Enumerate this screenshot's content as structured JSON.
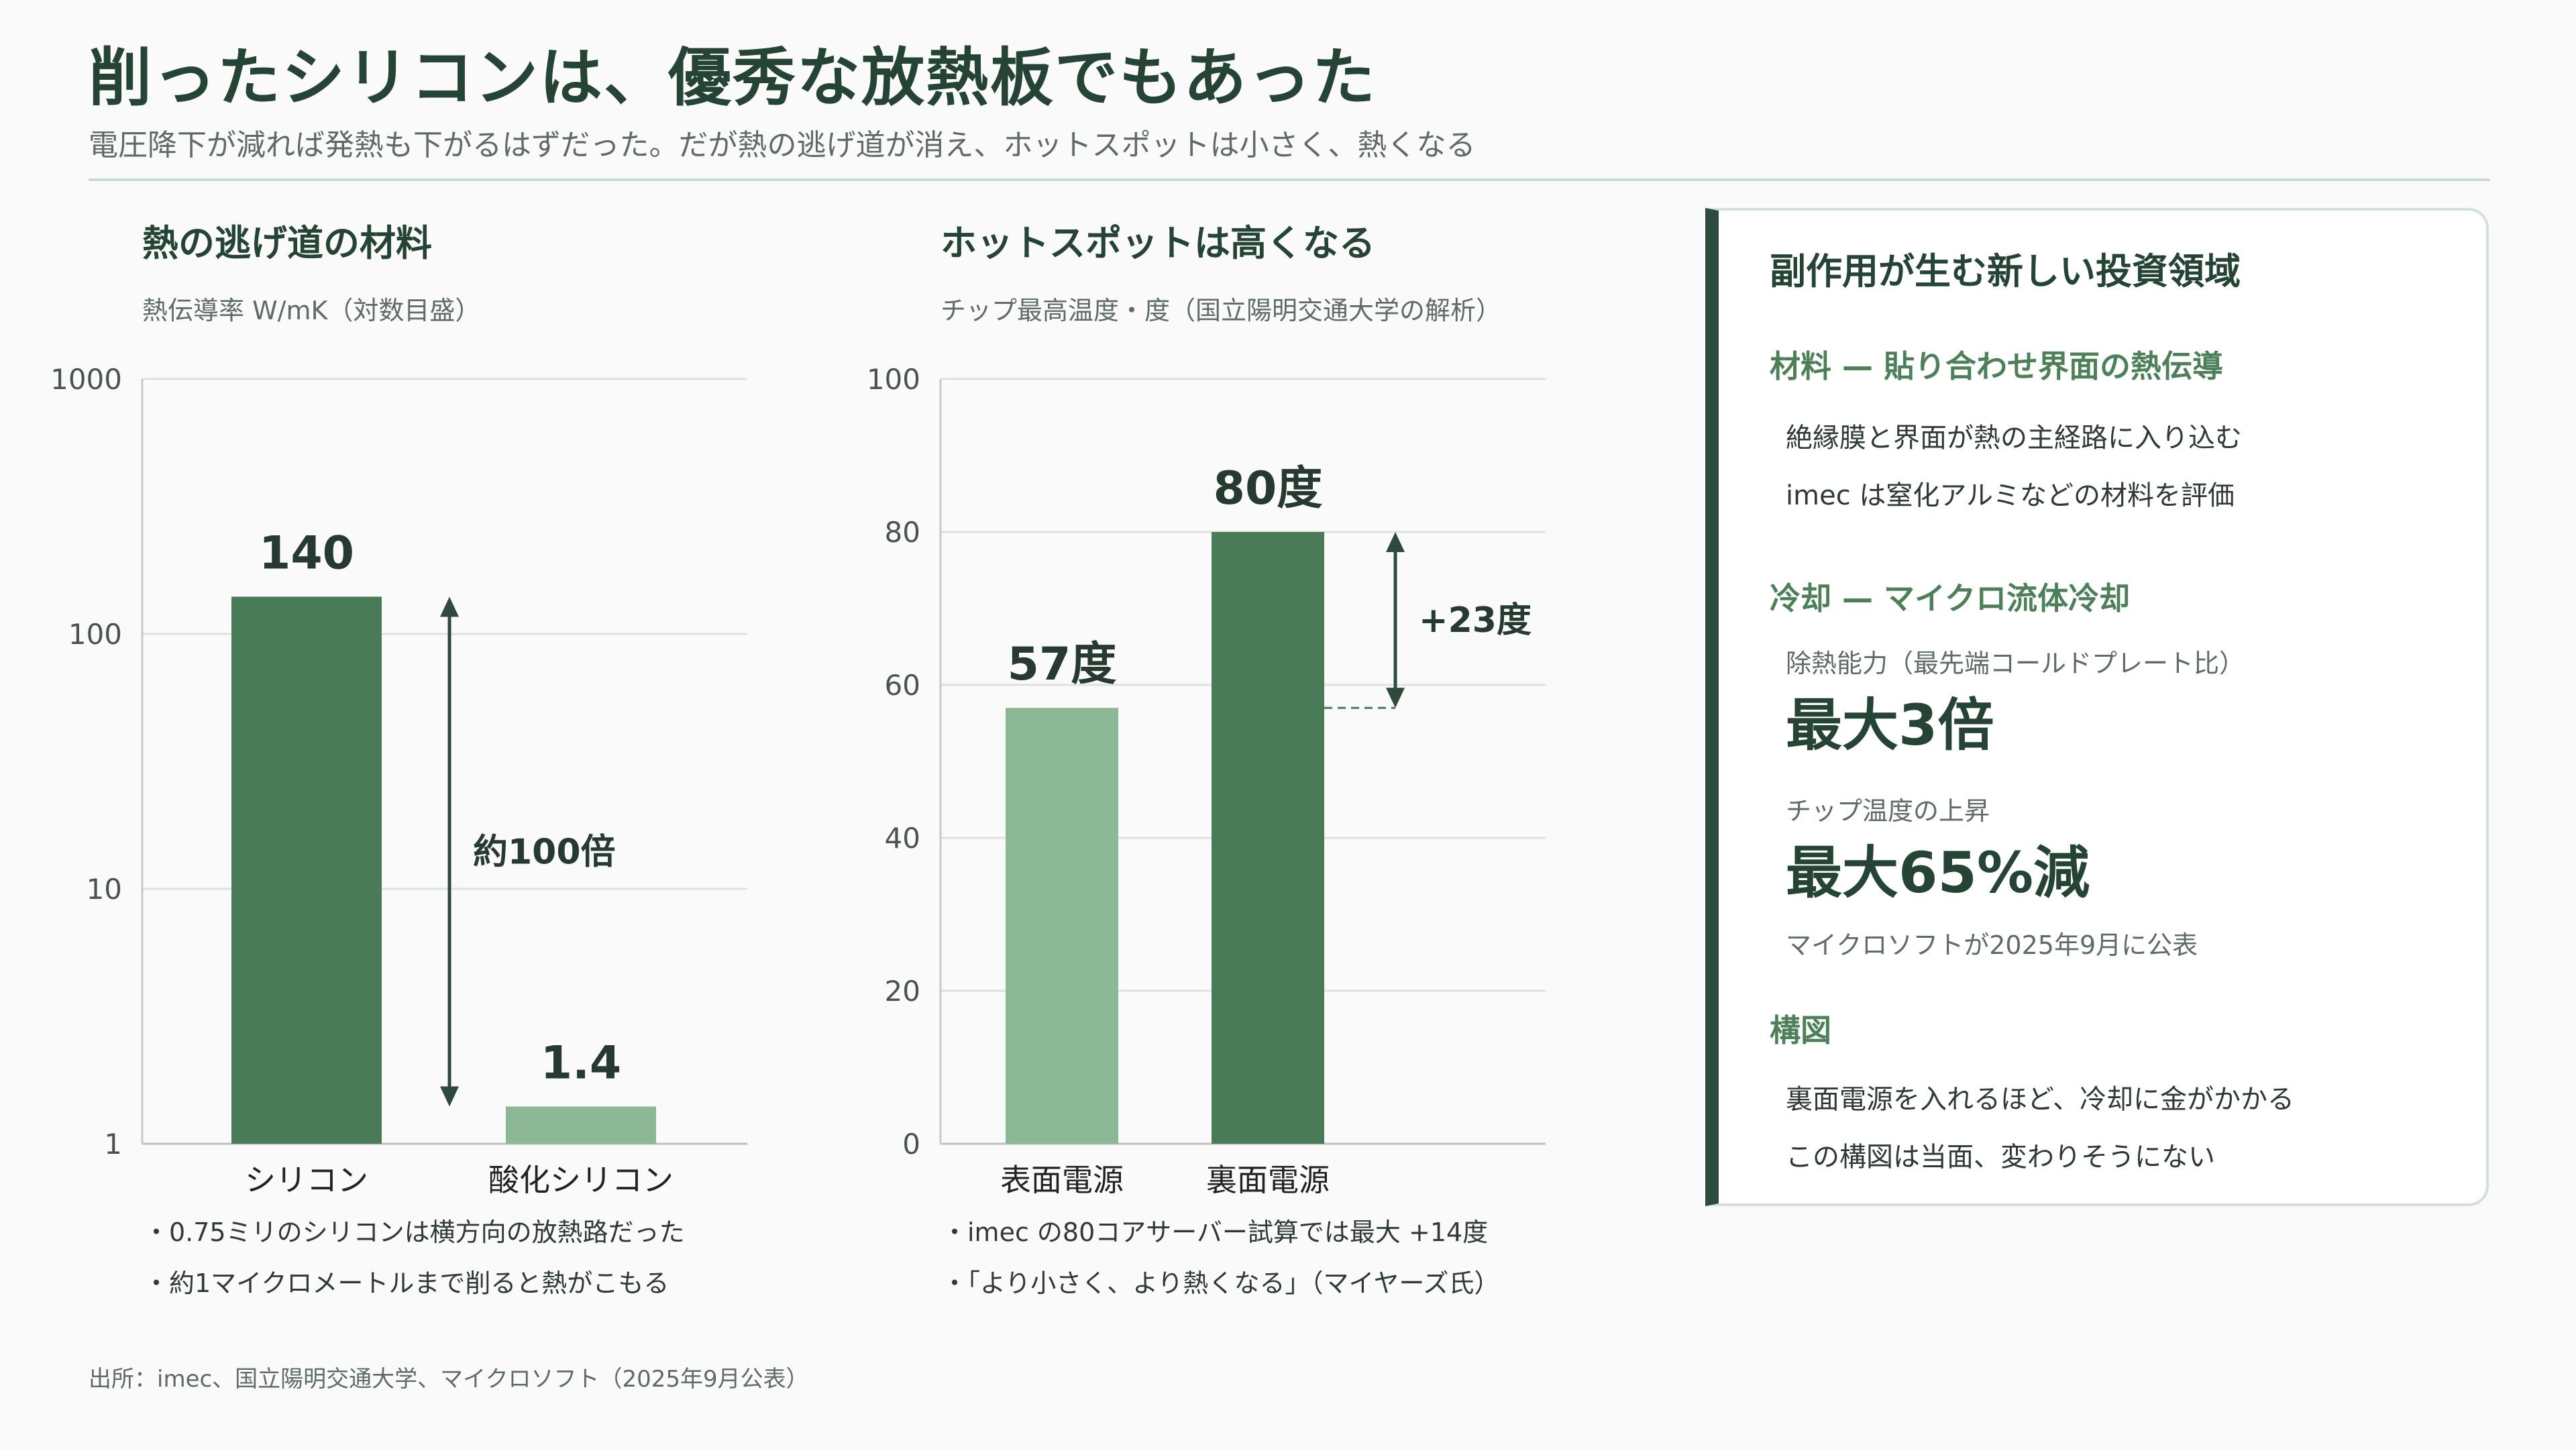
{
  "header": {
    "title": "削ったシリコンは、優秀な放熱板でもあった",
    "subtitle": "電圧降下が減れば発熱も下がるはずだった。だが熱の逃げ道が消え、ホットスポットは小さく、熱くなる"
  },
  "colors": {
    "dark_green": "#4a7b58",
    "light_green": "#8cb896",
    "ink": "#263a31",
    "accent_text": "#4d8059",
    "grid": "#dde3df"
  },
  "chart_data": [
    {
      "type": "bar",
      "title": "熱の逃げ道の材料",
      "subtitle": "熱伝導率 W/mK（対数目盛）",
      "log_scale": true,
      "ylim": [
        1,
        1000
      ],
      "yticks": [
        "1",
        "10",
        "100",
        "1000"
      ],
      "categories": [
        "シリコン",
        "酸化シリコン"
      ],
      "values": [
        140,
        1.4
      ],
      "value_labels": [
        "140",
        "1.4"
      ],
      "bar_colors": [
        "#4a7b58",
        "#8cb896"
      ],
      "annotation": {
        "text": "約100倍",
        "from": 1.4,
        "to": 140
      },
      "grid": true
    },
    {
      "type": "bar",
      "title": "ホットスポットは高くなる",
      "subtitle": "チップ最高温度・度（国立陽明交通大学の解析）",
      "log_scale": false,
      "ylim": [
        0,
        100
      ],
      "yticks": [
        "0",
        "20",
        "40",
        "60",
        "80",
        "100"
      ],
      "categories": [
        "表面電源",
        "裏面電源"
      ],
      "values": [
        57,
        80
      ],
      "value_labels": [
        "57度",
        "80度"
      ],
      "bar_colors": [
        "#8cb896",
        "#4a7b58"
      ],
      "annotation": {
        "text": "+23度",
        "from": 57,
        "to": 80
      },
      "grid": true
    }
  ],
  "notes": {
    "left": [
      "・0.75ミリのシリコンは横方向の放熱路だった",
      "・約1マイクロメートルまで削ると熱がこもる"
    ],
    "middle": [
      "・imec の80コアサーバー試算では最大 +14度",
      "・「より小さく、より熱くなる」（マイヤーズ氏）"
    ]
  },
  "side": {
    "title": "副作用が生む新しい投資領域",
    "materials": {
      "heading": "材料 — 貼り合わせ界面の熱伝導",
      "lines": [
        "絶縁膜と界面が熱の主経路に入り込む",
        "imec は窒化アルミなどの材料を評価"
      ]
    },
    "cooling": {
      "heading": "冷却 — マイクロ流体冷却",
      "metric1_label": "除熱能力（最先端コールドプレート比）",
      "metric1_value": "最大3倍",
      "metric2_label": "チップ温度の上昇",
      "metric2_value": "最大65%減",
      "note": "マイクロソフトが2025年9月に公表"
    },
    "structure": {
      "heading": "構図",
      "lines": [
        "裏面電源を入れるほど、冷却に金がかかる",
        "この構図は当面、変わりそうにない"
      ]
    }
  },
  "source": "出所：imec、国立陽明交通大学、マイクロソフト（2025年9月公表）"
}
